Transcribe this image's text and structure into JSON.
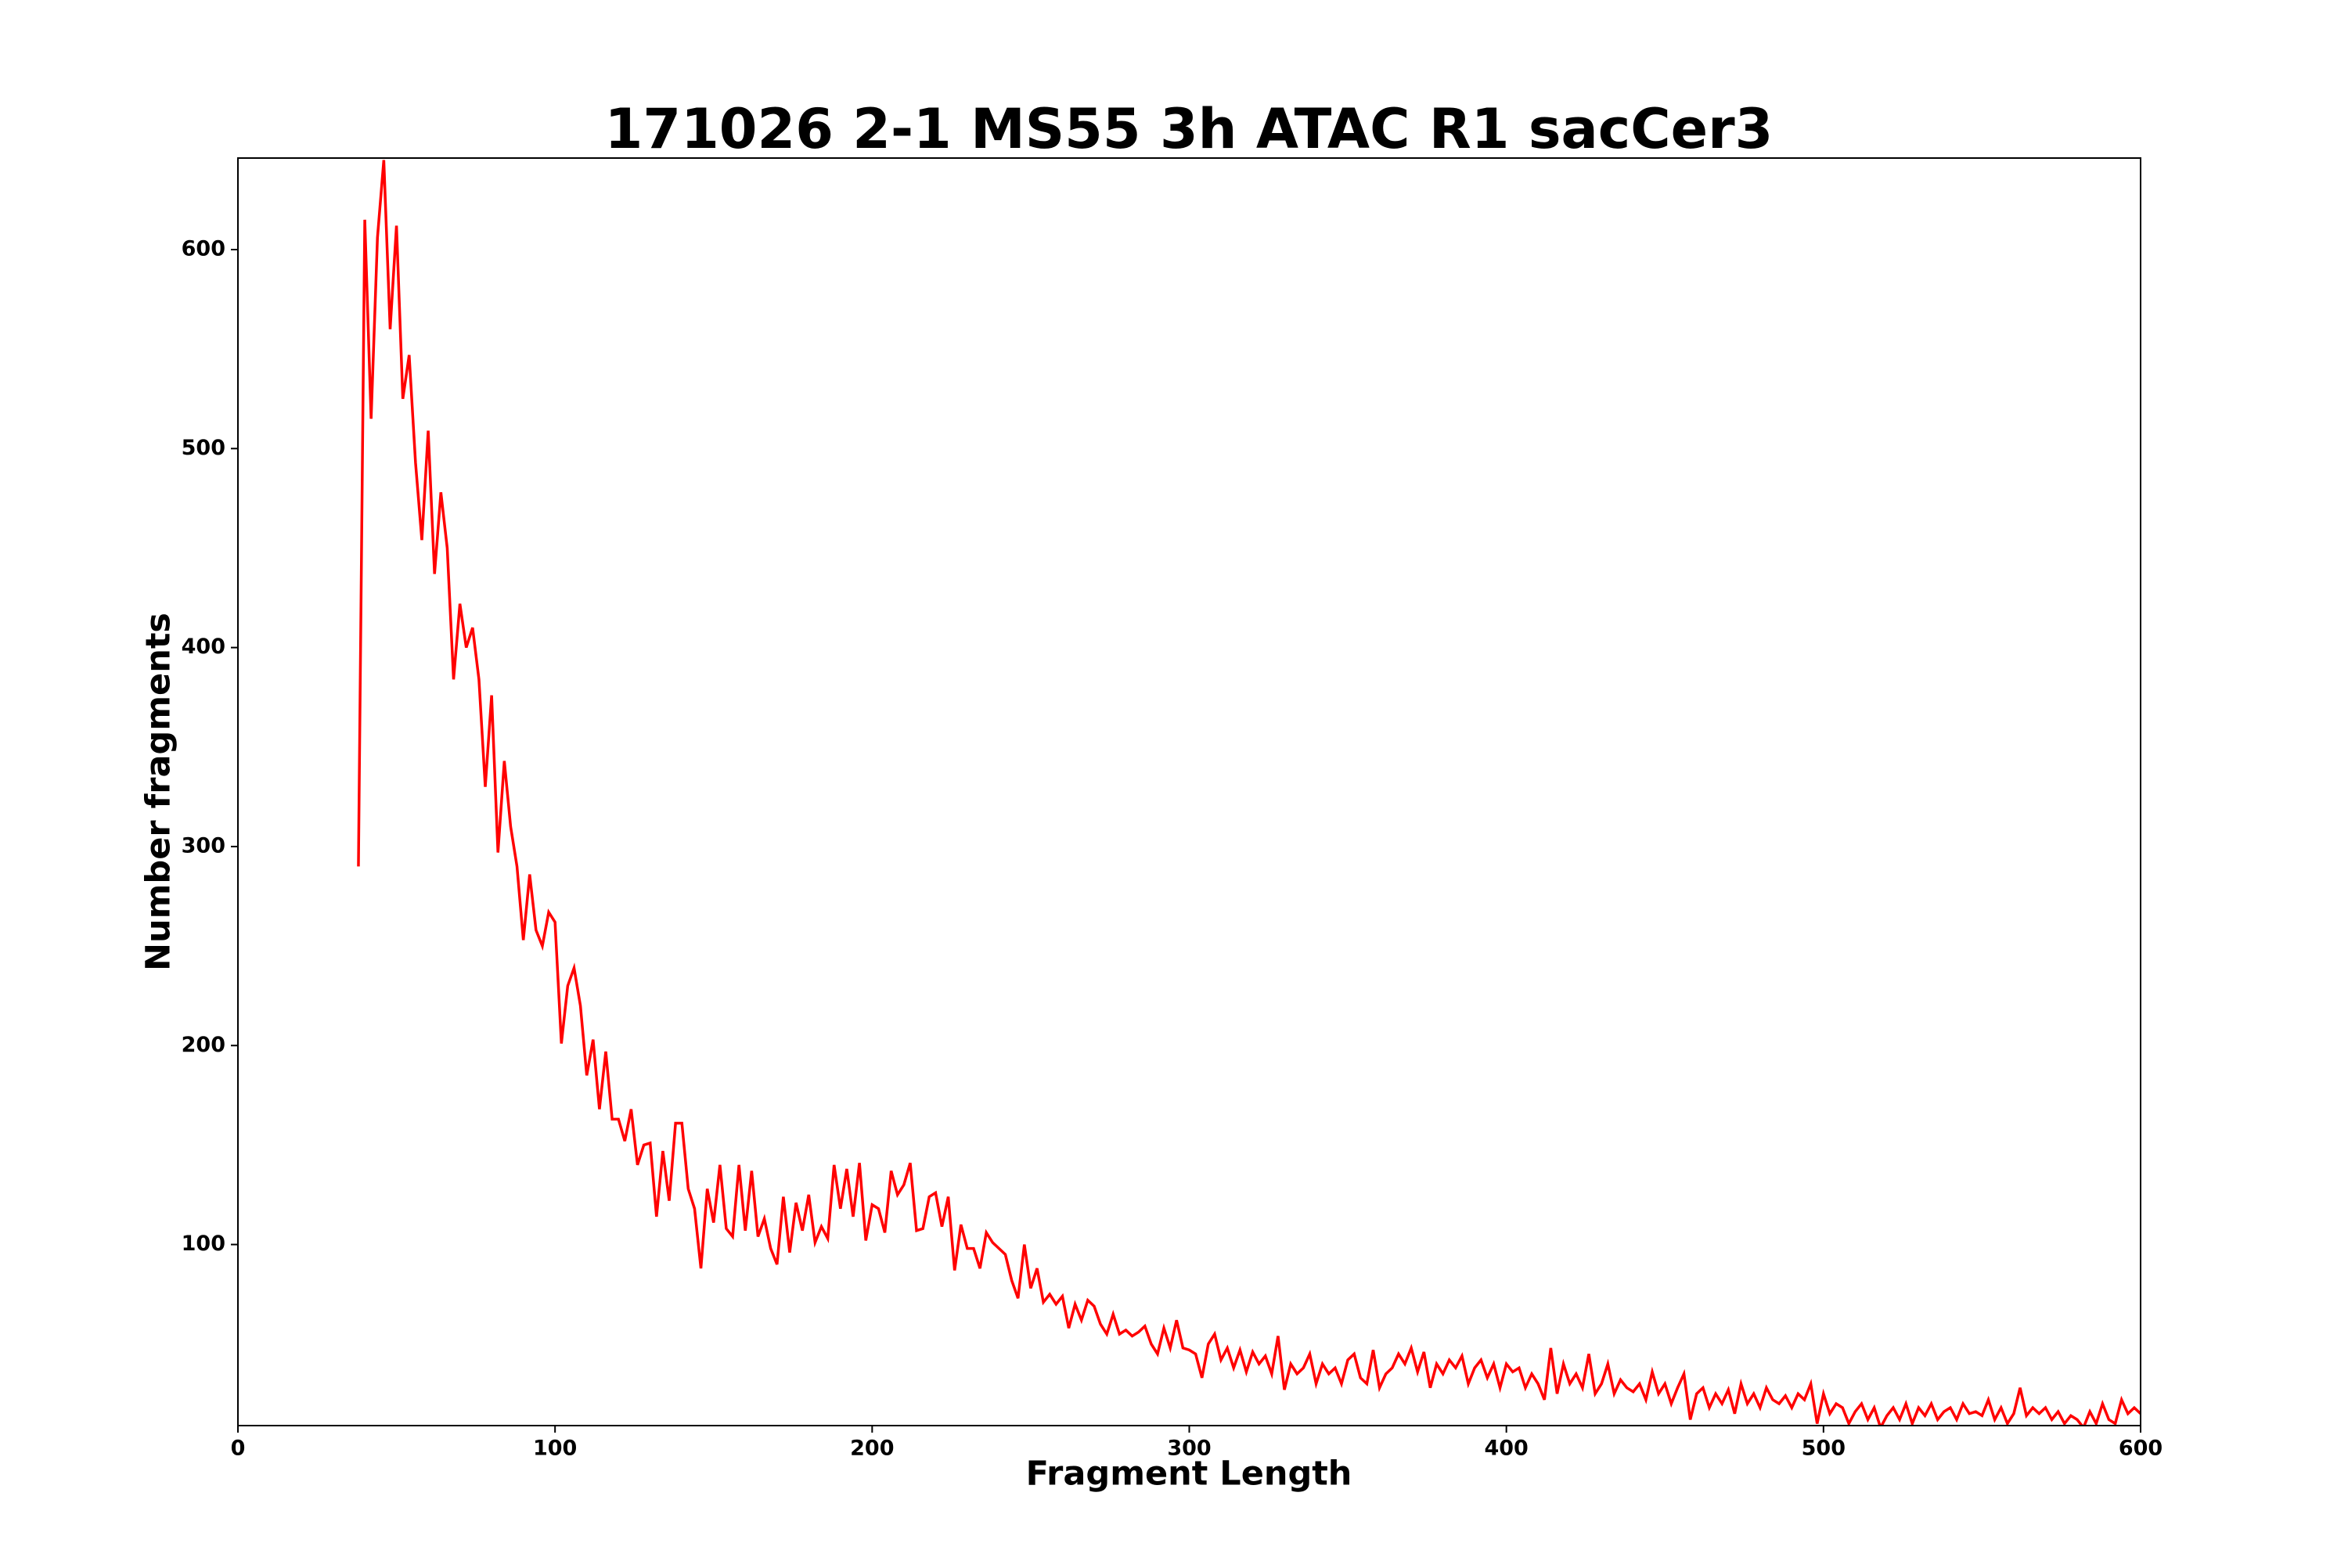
{
  "chart_data": {
    "type": "line",
    "title": "171026 2-1 MS55 3h ATAC R1 sacCer3",
    "x_label": "Fragment Length",
    "y_label": "Number fragments",
    "xlim": [
      0,
      600
    ],
    "xticks": [
      0,
      100,
      200,
      300,
      400,
      500,
      600
    ],
    "ylim": [
      9,
      646
    ],
    "yticks": [
      100,
      200,
      300,
      400,
      500,
      600
    ],
    "grid": false,
    "series": [
      {
        "color": "#ff0000",
        "x": [
          38,
          40,
          42,
          44,
          46,
          48,
          50,
          52,
          54,
          56,
          58,
          60,
          62,
          64,
          66,
          68,
          70,
          72,
          74,
          76,
          78,
          80,
          82,
          84,
          86,
          88,
          90,
          92,
          94,
          96,
          98,
          100,
          102,
          104,
          106,
          108,
          110,
          112,
          114,
          116,
          118,
          120,
          122,
          124,
          126,
          128,
          130,
          132,
          134,
          136,
          138,
          140,
          142,
          144,
          146,
          148,
          150,
          152,
          154,
          156,
          158,
          160,
          162,
          164,
          166,
          168,
          170,
          172,
          174,
          176,
          178,
          180,
          182,
          184,
          186,
          188,
          190,
          192,
          194,
          196,
          198,
          200,
          202,
          204,
          206,
          208,
          210,
          212,
          214,
          216,
          218,
          220,
          222,
          224,
          226,
          228,
          230,
          232,
          234,
          236,
          238,
          240,
          242,
          244,
          246,
          248,
          250,
          252,
          254,
          256,
          258,
          260,
          262,
          264,
          266,
          268,
          270,
          272,
          274,
          276,
          278,
          280,
          282,
          284,
          286,
          288,
          290,
          292,
          294,
          296,
          298,
          300,
          302,
          304,
          306,
          308,
          310,
          312,
          314,
          316,
          318,
          320,
          322,
          324,
          326,
          328,
          330,
          332,
          334,
          336,
          338,
          340,
          342,
          344,
          346,
          348,
          350,
          352,
          354,
          356,
          358,
          360,
          362,
          364,
          366,
          368,
          370,
          372,
          374,
          376,
          378,
          380,
          382,
          384,
          386,
          388,
          390,
          392,
          394,
          396,
          398,
          400,
          402,
          404,
          406,
          408,
          410,
          412,
          414,
          416,
          418,
          420,
          422,
          424,
          426,
          428,
          430,
          432,
          434,
          436,
          438,
          440,
          442,
          444,
          446,
          448,
          450,
          452,
          454,
          456,
          458,
          460,
          462,
          464,
          466,
          468,
          470,
          472,
          474,
          476,
          478,
          480,
          482,
          484,
          486,
          488,
          490,
          492,
          494,
          496,
          498,
          500,
          502,
          504,
          506,
          508,
          510,
          512,
          514,
          516,
          518,
          520,
          522,
          524,
          526,
          528,
          530,
          532,
          534,
          536,
          538,
          540,
          542,
          544,
          546,
          548,
          550,
          552,
          554,
          556,
          558,
          560,
          562,
          564,
          566,
          568,
          570,
          572,
          574,
          576,
          578,
          580,
          582,
          584,
          586,
          588,
          590,
          592,
          594,
          596,
          598,
          600
        ],
        "values": [
          290,
          615,
          515,
          606,
          645,
          560,
          612,
          525,
          547,
          493,
          454,
          509,
          437,
          478,
          450,
          384,
          422,
          400,
          410,
          384,
          330,
          376,
          297,
          343,
          310,
          290,
          253,
          286,
          258,
          250,
          267,
          262,
          201,
          230,
          239,
          220,
          185,
          203,
          168,
          197,
          163,
          163,
          152,
          168,
          140,
          150,
          151,
          114,
          147,
          122,
          161,
          161,
          128,
          118,
          88,
          128,
          111,
          140,
          108,
          104,
          140,
          107,
          137,
          104,
          113,
          98,
          90,
          124,
          96,
          121,
          107,
          125,
          101,
          109,
          103,
          140,
          118,
          138,
          114,
          141,
          102,
          120,
          118,
          106,
          137,
          125,
          130,
          141,
          107,
          108,
          124,
          126,
          109,
          124,
          87,
          110,
          98,
          98,
          88,
          106,
          101,
          98,
          95,
          82,
          73,
          100,
          78,
          88,
          71,
          75,
          70,
          74,
          58,
          70,
          62,
          72,
          69,
          60,
          55,
          65,
          55,
          57,
          54,
          56,
          59,
          50,
          45,
          58,
          48,
          62,
          48,
          47,
          45,
          33,
          50,
          55,
          42,
          48,
          38,
          47,
          36,
          46,
          40,
          44,
          35,
          54,
          27,
          40,
          35,
          38,
          45,
          30,
          40,
          35,
          38,
          30,
          42,
          45,
          33,
          30,
          47,
          28,
          35,
          38,
          45,
          40,
          48,
          36,
          46,
          28,
          40,
          35,
          42,
          38,
          44,
          30,
          38,
          42,
          33,
          40,
          28,
          40,
          36,
          38,
          28,
          35,
          30,
          22,
          48,
          25,
          40,
          30,
          35,
          28,
          45,
          25,
          30,
          40,
          25,
          32,
          28,
          26,
          30,
          22,
          36,
          25,
          30,
          20,
          28,
          35,
          12,
          25,
          28,
          18,
          25,
          20,
          27,
          15,
          30,
          20,
          25,
          18,
          28,
          22,
          20,
          24,
          18,
          25,
          22,
          30,
          10,
          25,
          15,
          20,
          18,
          10,
          16,
          20,
          12,
          18,
          8,
          14,
          18,
          12,
          20,
          10,
          18,
          14,
          20,
          12,
          16,
          18,
          12,
          20,
          15,
          16,
          14,
          22,
          12,
          18,
          10,
          15,
          28,
          14,
          18,
          15,
          18,
          12,
          16,
          10,
          14,
          12,
          8,
          16,
          10,
          20,
          12,
          10,
          22,
          15,
          18,
          15
        ]
      }
    ]
  }
}
